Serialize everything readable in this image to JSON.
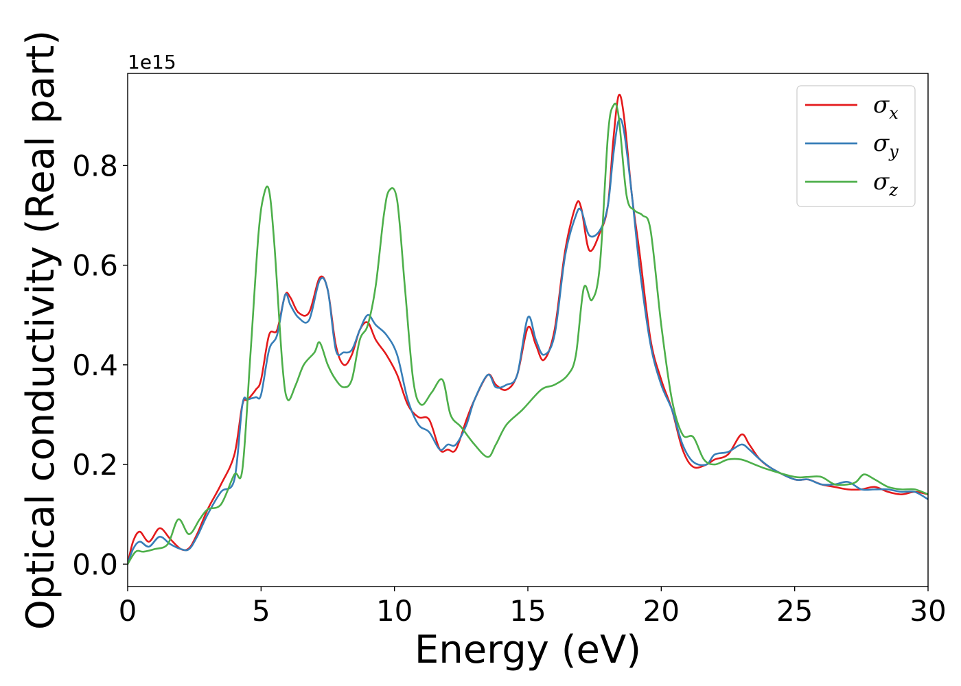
{
  "chart_data": {
    "type": "line",
    "xlabel": "Energy (eV)",
    "ylabel": "Optical conductivity (Real part)",
    "y_offset_label": "1e15",
    "xlim": [
      0,
      30
    ],
    "ylim": [
      -0.045,
      0.985
    ],
    "x_ticks": [
      0,
      5,
      10,
      15,
      20,
      25,
      30
    ],
    "x_tick_labels": [
      "0",
      "5",
      "10",
      "15",
      "20",
      "25",
      "30"
    ],
    "y_ticks": [
      0.0,
      0.2,
      0.4,
      0.6,
      0.8
    ],
    "y_tick_labels": [
      "0.0",
      "0.2",
      "0.4",
      "0.6",
      "0.8"
    ],
    "grid": false,
    "legend_position": "top-right",
    "series": [
      {
        "name": "σx",
        "symbol": "σ",
        "subscript": "x",
        "color": "#e41a1c",
        "x": [
          0,
          0.2,
          0.45,
          0.8,
          1.2,
          1.6,
          2.0,
          2.3,
          2.6,
          3.0,
          3.5,
          4.0,
          4.3,
          4.5,
          4.8,
          5.0,
          5.3,
          5.6,
          5.9,
          6.1,
          6.4,
          6.8,
          7.2,
          7.5,
          7.8,
          8.1,
          8.4,
          8.7,
          9.0,
          9.3,
          9.7,
          10.1,
          10.5,
          10.9,
          11.3,
          11.7,
          12.0,
          12.3,
          12.7,
          13.0,
          13.5,
          13.8,
          14.2,
          14.6,
          15.0,
          15.3,
          15.6,
          16.0,
          16.4,
          16.8,
          17.0,
          17.3,
          17.7,
          18.0,
          18.2,
          18.4,
          18.6,
          18.9,
          19.2,
          19.6,
          20.0,
          20.4,
          20.8,
          21.2,
          21.7,
          22.0,
          22.5,
          23.0,
          23.3,
          23.7,
          24.2,
          25.0,
          25.5,
          26.0,
          26.5,
          27.0,
          27.5,
          28.0,
          28.5,
          29.0,
          29.5,
          30.0
        ],
        "y": [
          0.0,
          0.045,
          0.065,
          0.045,
          0.072,
          0.05,
          0.03,
          0.032,
          0.06,
          0.11,
          0.16,
          0.22,
          0.32,
          0.33,
          0.35,
          0.37,
          0.46,
          0.47,
          0.54,
          0.535,
          0.505,
          0.505,
          0.575,
          0.55,
          0.44,
          0.4,
          0.42,
          0.47,
          0.485,
          0.45,
          0.42,
          0.38,
          0.32,
          0.295,
          0.29,
          0.23,
          0.23,
          0.23,
          0.29,
          0.33,
          0.38,
          0.36,
          0.35,
          0.38,
          0.475,
          0.44,
          0.41,
          0.47,
          0.63,
          0.72,
          0.715,
          0.63,
          0.665,
          0.72,
          0.85,
          0.94,
          0.9,
          0.74,
          0.62,
          0.45,
          0.37,
          0.31,
          0.23,
          0.195,
          0.2,
          0.21,
          0.22,
          0.26,
          0.24,
          0.21,
          0.19,
          0.17,
          0.17,
          0.16,
          0.155,
          0.15,
          0.15,
          0.155,
          0.145,
          0.14,
          0.145,
          0.14
        ]
      },
      {
        "name": "σy",
        "symbol": "σ",
        "subscript": "y",
        "color": "#377eb8",
        "x": [
          0,
          0.2,
          0.45,
          0.8,
          1.2,
          1.6,
          2.0,
          2.3,
          2.6,
          3.0,
          3.5,
          4.0,
          4.3,
          4.5,
          4.8,
          5.0,
          5.3,
          5.6,
          5.9,
          6.1,
          6.4,
          6.8,
          7.2,
          7.5,
          7.8,
          8.1,
          8.4,
          8.7,
          9.0,
          9.3,
          9.7,
          10.1,
          10.5,
          10.9,
          11.3,
          11.7,
          12.0,
          12.3,
          12.7,
          13.0,
          13.5,
          13.8,
          14.2,
          14.6,
          15.0,
          15.3,
          15.6,
          16.0,
          16.4,
          16.8,
          17.0,
          17.3,
          17.7,
          18.0,
          18.2,
          18.4,
          18.6,
          18.9,
          19.2,
          19.6,
          20.0,
          20.4,
          20.8,
          21.2,
          21.7,
          22.0,
          22.5,
          23.0,
          23.3,
          23.7,
          24.2,
          25.0,
          25.5,
          26.0,
          26.5,
          27.0,
          27.5,
          28.0,
          28.5,
          29.0,
          29.5,
          30.0
        ],
        "y": [
          0.0,
          0.03,
          0.045,
          0.035,
          0.055,
          0.04,
          0.03,
          0.03,
          0.055,
          0.1,
          0.145,
          0.17,
          0.32,
          0.33,
          0.335,
          0.34,
          0.43,
          0.46,
          0.54,
          0.52,
          0.495,
          0.49,
          0.57,
          0.55,
          0.43,
          0.425,
          0.43,
          0.47,
          0.5,
          0.48,
          0.46,
          0.42,
          0.33,
          0.28,
          0.265,
          0.23,
          0.24,
          0.24,
          0.28,
          0.33,
          0.38,
          0.355,
          0.36,
          0.38,
          0.495,
          0.45,
          0.42,
          0.46,
          0.62,
          0.7,
          0.71,
          0.66,
          0.67,
          0.72,
          0.82,
          0.89,
          0.87,
          0.74,
          0.59,
          0.44,
          0.36,
          0.31,
          0.24,
          0.205,
          0.2,
          0.22,
          0.225,
          0.24,
          0.23,
          0.21,
          0.19,
          0.17,
          0.17,
          0.16,
          0.16,
          0.165,
          0.15,
          0.15,
          0.15,
          0.145,
          0.145,
          0.13
        ]
      },
      {
        "name": "σz",
        "symbol": "σ",
        "subscript": "z",
        "color": "#4daf4a",
        "x": [
          0,
          0.3,
          0.6,
          1.0,
          1.5,
          1.9,
          2.3,
          2.7,
          3.0,
          3.5,
          4.0,
          4.3,
          4.6,
          4.9,
          5.1,
          5.3,
          5.5,
          5.8,
          6.0,
          6.3,
          6.6,
          7.0,
          7.2,
          7.5,
          7.8,
          8.1,
          8.4,
          8.7,
          9.0,
          9.3,
          9.6,
          9.8,
          10.1,
          10.4,
          10.7,
          11.0,
          11.4,
          11.8,
          12.1,
          12.5,
          13.0,
          13.5,
          13.8,
          14.2,
          14.8,
          15.5,
          16.0,
          16.5,
          16.8,
          17.1,
          17.4,
          17.7,
          18.0,
          18.2,
          18.4,
          18.7,
          19.0,
          19.3,
          19.6,
          20.0,
          20.4,
          20.8,
          21.2,
          21.6,
          22.0,
          22.5,
          23.0,
          23.5,
          24.0,
          25.0,
          25.5,
          26.0,
          26.5,
          27.0,
          27.3,
          27.6,
          28.0,
          28.5,
          29.0,
          29.5,
          30.0
        ],
        "y": [
          0.0,
          0.025,
          0.025,
          0.03,
          0.04,
          0.09,
          0.06,
          0.09,
          0.11,
          0.12,
          0.18,
          0.19,
          0.42,
          0.66,
          0.74,
          0.75,
          0.64,
          0.4,
          0.33,
          0.36,
          0.4,
          0.425,
          0.445,
          0.4,
          0.37,
          0.355,
          0.37,
          0.45,
          0.48,
          0.56,
          0.7,
          0.75,
          0.73,
          0.55,
          0.37,
          0.32,
          0.345,
          0.37,
          0.3,
          0.275,
          0.24,
          0.215,
          0.24,
          0.28,
          0.31,
          0.35,
          0.36,
          0.38,
          0.42,
          0.555,
          0.53,
          0.6,
          0.86,
          0.92,
          0.9,
          0.74,
          0.71,
          0.7,
          0.67,
          0.48,
          0.33,
          0.26,
          0.255,
          0.21,
          0.2,
          0.21,
          0.21,
          0.2,
          0.19,
          0.175,
          0.175,
          0.175,
          0.16,
          0.16,
          0.165,
          0.18,
          0.17,
          0.155,
          0.15,
          0.15,
          0.14
        ]
      }
    ]
  }
}
